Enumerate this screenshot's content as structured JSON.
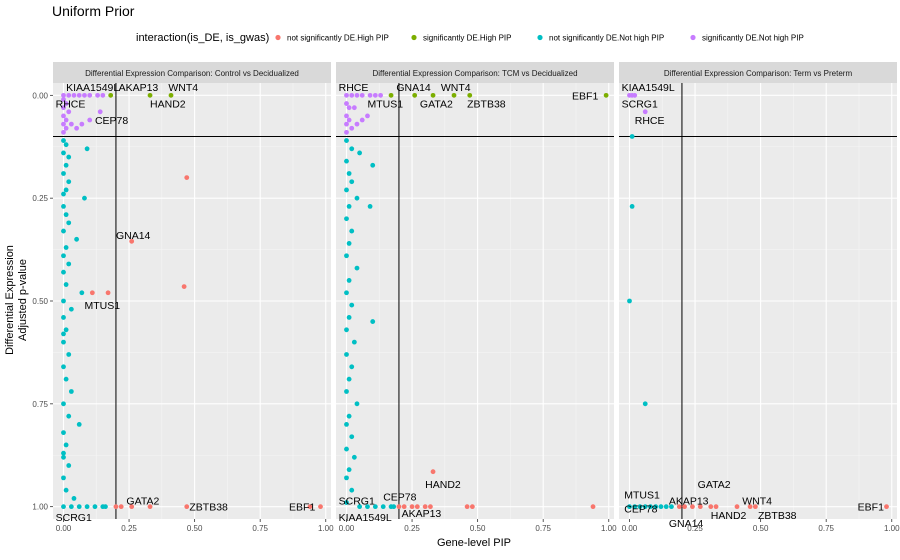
{
  "chart_data": {
    "type": "scatter",
    "title": "Uniform Prior",
    "legend": {
      "title": "interaction(is_DE, is_gwas)",
      "placement": "top",
      "entries": [
        {
          "label": "not significantly DE.High PIP",
          "color": "#F8766D"
        },
        {
          "label": "significantly DE.High PIP",
          "color": "#7CAE00"
        },
        {
          "label": "not significantly DE.Not high PIP",
          "color": "#00BFC4"
        },
        {
          "label": "significantly DE.Not high PIP",
          "color": "#C77CFF"
        }
      ]
    },
    "xlabel": "Gene-level PIP",
    "ylabel_line1": "Differential Expression",
    "ylabel_line2": "Adjusted p-value",
    "xlim": [
      -0.04,
      1.02
    ],
    "ylim_reversed": [
      -0.03,
      1.03
    ],
    "x_ticks": [
      0.0,
      0.25,
      0.5,
      0.75,
      1.0
    ],
    "x_tick_labels": [
      "0.00",
      "0.25",
      "0.50",
      "0.75",
      "1.00"
    ],
    "y_ticks": [
      0.0,
      0.25,
      0.5,
      0.75,
      1.0
    ],
    "y_tick_labels": [
      "0.00",
      "0.25",
      "0.50",
      "0.75",
      "1.00"
    ],
    "hline_y": 0.1,
    "vline_x": 0.2,
    "grid": true,
    "panels": [
      {
        "strip": "Differential Expression Comparison: Control vs Decidualized",
        "points": {
          "not significantly DE.High PIP": [
            [
              0.47,
              0.2
            ],
            [
              0.26,
              0.355
            ],
            [
              0.46,
              0.465
            ],
            [
              0.11,
              0.48
            ],
            [
              0.17,
              0.48
            ],
            [
              0.2,
              1.0
            ],
            [
              0.22,
              1.0
            ],
            [
              0.26,
              1.0
            ],
            [
              0.33,
              1.0
            ],
            [
              0.47,
              1.0
            ],
            [
              0.98,
              1.0
            ],
            [
              0.94,
              1.0
            ]
          ],
          "significantly DE.High PIP": [
            [
              0.18,
              0.0
            ],
            [
              0.33,
              0.0
            ],
            [
              0.41,
              0.0
            ]
          ],
          "not significantly DE.Not high PIP": [
            [
              0.0,
              0.11
            ],
            [
              0.01,
              0.12
            ],
            [
              0.0,
              0.14
            ],
            [
              0.02,
              0.15
            ],
            [
              0.09,
              0.13
            ],
            [
              0.01,
              0.17
            ],
            [
              0.0,
              0.19
            ],
            [
              0.02,
              0.21
            ],
            [
              0.01,
              0.23
            ],
            [
              0.08,
              0.25
            ],
            [
              0.0,
              0.27
            ],
            [
              0.01,
              0.29
            ],
            [
              0.02,
              0.31
            ],
            [
              0.0,
              0.33
            ],
            [
              0.05,
              0.35
            ],
            [
              0.01,
              0.37
            ],
            [
              0.0,
              0.39
            ],
            [
              0.02,
              0.41
            ],
            [
              0.0,
              0.43
            ],
            [
              0.01,
              0.46
            ],
            [
              0.07,
              0.48
            ],
            [
              0.0,
              0.5
            ],
            [
              0.03,
              0.52
            ],
            [
              0.0,
              0.54
            ],
            [
              0.01,
              0.57
            ],
            [
              0.0,
              0.6
            ],
            [
              0.02,
              0.63
            ],
            [
              0.0,
              0.66
            ],
            [
              0.01,
              0.69
            ],
            [
              0.03,
              0.72
            ],
            [
              0.0,
              0.75
            ],
            [
              0.02,
              0.78
            ],
            [
              0.06,
              0.8
            ],
            [
              0.0,
              0.82
            ],
            [
              0.01,
              0.85
            ],
            [
              0.0,
              0.87
            ],
            [
              0.02,
              0.9
            ],
            [
              0.0,
              0.93
            ],
            [
              0.01,
              0.96
            ],
            [
              0.04,
              0.98
            ],
            [
              0.0,
              1.0
            ],
            [
              0.03,
              1.0
            ],
            [
              0.06,
              1.0
            ],
            [
              0.09,
              1.0
            ],
            [
              0.12,
              1.0
            ],
            [
              0.15,
              1.0
            ],
            [
              0.16,
              1.0
            ],
            [
              0.0,
              0.24
            ],
            [
              0.0,
              0.58
            ],
            [
              0.0,
              0.88
            ]
          ],
          "significantly DE.Not high PIP": [
            [
              0.0,
              0.0
            ],
            [
              0.02,
              0.0
            ],
            [
              0.04,
              0.0
            ],
            [
              0.06,
              0.0
            ],
            [
              0.08,
              0.0
            ],
            [
              0.1,
              0.0
            ],
            [
              0.13,
              0.0
            ],
            [
              0.15,
              0.0
            ],
            [
              0.0,
              0.01
            ],
            [
              0.01,
              0.02
            ],
            [
              0.0,
              0.03
            ],
            [
              0.02,
              0.04
            ],
            [
              0.0,
              0.05
            ],
            [
              0.01,
              0.06
            ],
            [
              0.0,
              0.07
            ],
            [
              0.03,
              0.07
            ],
            [
              0.01,
              0.08
            ],
            [
              0.07,
              0.07
            ],
            [
              0.1,
              0.06
            ],
            [
              0.05,
              0.08
            ],
            [
              0.0,
              0.09
            ],
            [
              0.14,
              0.04
            ]
          ]
        },
        "labels": [
          {
            "text": "KIAA1549L",
            "x": 0.01,
            "y": -0.02,
            "anchor": "start"
          },
          {
            "text": "AKAP13",
            "x": 0.21,
            "y": -0.02,
            "anchor": "start"
          },
          {
            "text": "WNT4",
            "x": 0.4,
            "y": -0.02,
            "anchor": "start"
          },
          {
            "text": "RHCE",
            "x": -0.03,
            "y": 0.02,
            "anchor": "start"
          },
          {
            "text": "HAND2",
            "x": 0.33,
            "y": 0.02,
            "anchor": "start"
          },
          {
            "text": "CEP78",
            "x": 0.12,
            "y": 0.06,
            "anchor": "start"
          },
          {
            "text": "GNA14",
            "x": 0.2,
            "y": 0.34,
            "anchor": "start"
          },
          {
            "text": "MTUS1",
            "x": 0.08,
            "y": 0.51,
            "anchor": "start"
          },
          {
            "text": "GATA2",
            "x": 0.24,
            "y": 0.985,
            "anchor": "start"
          },
          {
            "text": "ZBTB38",
            "x": 0.48,
            "y": 1.0,
            "anchor": "start"
          },
          {
            "text": "EBF1",
            "x": 0.86,
            "y": 1.0,
            "anchor": "start"
          },
          {
            "text": "SCRG1",
            "x": -0.03,
            "y": 1.025,
            "anchor": "start"
          }
        ]
      },
      {
        "strip": "Differential Expression Comparison: TCM vs Decidualized",
        "points": {
          "not significantly DE.High PIP": [
            [
              0.33,
              0.915
            ],
            [
              0.22,
              1.0
            ],
            [
              0.25,
              1.0
            ],
            [
              0.27,
              1.0
            ],
            [
              0.3,
              1.0
            ],
            [
              0.32,
              1.0
            ],
            [
              0.46,
              1.0
            ],
            [
              0.48,
              1.0
            ],
            [
              0.94,
              1.0
            ],
            [
              0.2,
              1.0
            ]
          ],
          "significantly DE.High PIP": [
            [
              0.17,
              0.0
            ],
            [
              0.26,
              0.0
            ],
            [
              0.33,
              0.0
            ],
            [
              0.41,
              0.0
            ],
            [
              0.47,
              0.0
            ],
            [
              0.99,
              0.0
            ]
          ],
          "not significantly DE.Not high PIP": [
            [
              0.0,
              0.11
            ],
            [
              0.02,
              0.13
            ],
            [
              0.05,
              0.14
            ],
            [
              0.0,
              0.16
            ],
            [
              0.1,
              0.17
            ],
            [
              0.01,
              0.19
            ],
            [
              0.02,
              0.21
            ],
            [
              0.0,
              0.23
            ],
            [
              0.04,
              0.25
            ],
            [
              0.01,
              0.27
            ],
            [
              0.09,
              0.27
            ],
            [
              0.0,
              0.3
            ],
            [
              0.02,
              0.33
            ],
            [
              0.01,
              0.36
            ],
            [
              0.0,
              0.39
            ],
            [
              0.04,
              0.42
            ],
            [
              0.01,
              0.45
            ],
            [
              0.0,
              0.48
            ],
            [
              0.02,
              0.51
            ],
            [
              0.1,
              0.55
            ],
            [
              0.01,
              0.54
            ],
            [
              0.0,
              0.57
            ],
            [
              0.03,
              0.6
            ],
            [
              0.0,
              0.63
            ],
            [
              0.02,
              0.66
            ],
            [
              0.01,
              0.69
            ],
            [
              0.0,
              0.72
            ],
            [
              0.04,
              0.75
            ],
            [
              0.01,
              0.78
            ],
            [
              0.0,
              0.8
            ],
            [
              0.02,
              0.83
            ],
            [
              0.0,
              0.86
            ],
            [
              0.03,
              0.88
            ],
            [
              0.01,
              0.91
            ],
            [
              0.0,
              0.93
            ],
            [
              0.02,
              0.96
            ],
            [
              0.0,
              0.99
            ],
            [
              0.05,
              1.0
            ],
            [
              0.08,
              1.0
            ],
            [
              0.11,
              1.0
            ],
            [
              0.14,
              1.0
            ],
            [
              0.17,
              1.0
            ],
            [
              0.18,
              1.0
            ]
          ],
          "significantly DE.Not high PIP": [
            [
              0.0,
              0.0
            ],
            [
              0.02,
              0.0
            ],
            [
              0.04,
              0.0
            ],
            [
              0.06,
              0.0
            ],
            [
              0.09,
              0.0
            ],
            [
              0.11,
              0.0
            ],
            [
              0.13,
              0.0
            ],
            [
              0.0,
              0.02
            ],
            [
              0.01,
              0.03
            ],
            [
              0.03,
              0.03
            ],
            [
              0.0,
              0.05
            ],
            [
              0.01,
              0.06
            ],
            [
              0.0,
              0.07
            ],
            [
              0.02,
              0.08
            ],
            [
              0.0,
              0.09
            ],
            [
              0.04,
              0.07
            ],
            [
              0.06,
              0.06
            ],
            [
              0.08,
              0.05
            ]
          ]
        },
        "labels": [
          {
            "text": "RHCE",
            "x": -0.03,
            "y": -0.02,
            "anchor": "start"
          },
          {
            "text": "GNA14",
            "x": 0.19,
            "y": -0.02,
            "anchor": "start"
          },
          {
            "text": "WNT4",
            "x": 0.36,
            "y": -0.02,
            "anchor": "start"
          },
          {
            "text": "EBF1",
            "x": 0.86,
            "y": 0.0,
            "anchor": "start"
          },
          {
            "text": "MTUS1",
            "x": 0.08,
            "y": 0.02,
            "anchor": "start"
          },
          {
            "text": "GATA2",
            "x": 0.28,
            "y": 0.02,
            "anchor": "start"
          },
          {
            "text": "ZBTB38",
            "x": 0.46,
            "y": 0.02,
            "anchor": "start"
          },
          {
            "text": "HAND2",
            "x": 0.3,
            "y": 0.945,
            "anchor": "start"
          },
          {
            "text": "CEP78",
            "x": 0.14,
            "y": 0.975,
            "anchor": "start"
          },
          {
            "text": "SCRG1",
            "x": -0.03,
            "y": 0.985,
            "anchor": "start"
          },
          {
            "text": "AKAP13",
            "x": 0.21,
            "y": 1.015,
            "anchor": "start"
          },
          {
            "text": "KIAA1549L",
            "x": -0.03,
            "y": 1.025,
            "anchor": "start"
          }
        ]
      },
      {
        "strip": "Differential Expression Comparison: Term vs Preterm",
        "points": {
          "not significantly DE.High PIP": [
            [
              0.21,
              1.0
            ],
            [
              0.24,
              1.0
            ],
            [
              0.27,
              1.0
            ],
            [
              0.31,
              1.0
            ],
            [
              0.33,
              1.0
            ],
            [
              0.41,
              1.0
            ],
            [
              0.46,
              1.0
            ],
            [
              0.48,
              1.0
            ],
            [
              0.98,
              1.0
            ],
            [
              0.19,
              1.0
            ]
          ],
          "significantly DE.High PIP": [],
          "not significantly DE.Not high PIP": [
            [
              0.01,
              0.1
            ],
            [
              0.01,
              0.27
            ],
            [
              0.0,
              0.5
            ],
            [
              0.06,
              0.75
            ],
            [
              0.0,
              1.0
            ],
            [
              0.02,
              1.0
            ],
            [
              0.04,
              1.0
            ],
            [
              0.06,
              1.0
            ],
            [
              0.08,
              1.0
            ],
            [
              0.1,
              1.0
            ],
            [
              0.12,
              1.0
            ],
            [
              0.14,
              1.0
            ],
            [
              0.16,
              1.0
            ]
          ],
          "significantly DE.Not high PIP": [
            [
              0.0,
              0.0
            ],
            [
              0.01,
              0.0
            ],
            [
              0.02,
              0.0
            ],
            [
              0.06,
              0.04
            ]
          ]
        },
        "labels": [
          {
            "text": "KIAA1549L",
            "x": -0.03,
            "y": -0.02,
            "anchor": "start"
          },
          {
            "text": "SCRG1",
            "x": -0.03,
            "y": 0.02,
            "anchor": "start"
          },
          {
            "text": "RHCE",
            "x": 0.02,
            "y": 0.06,
            "anchor": "start"
          },
          {
            "text": "GATA2",
            "x": 0.26,
            "y": 0.945,
            "anchor": "start"
          },
          {
            "text": "MTUS1",
            "x": -0.02,
            "y": 0.97,
            "anchor": "start"
          },
          {
            "text": "AKAP13",
            "x": 0.15,
            "y": 0.985,
            "anchor": "start"
          },
          {
            "text": "WNT4",
            "x": 0.43,
            "y": 0.985,
            "anchor": "start"
          },
          {
            "text": "CEP78",
            "x": -0.02,
            "y": 1.005,
            "anchor": "start"
          },
          {
            "text": "EBF1",
            "x": 0.87,
            "y": 1.0,
            "anchor": "start"
          },
          {
            "text": "HAND2",
            "x": 0.31,
            "y": 1.02,
            "anchor": "start"
          },
          {
            "text": "ZBTB38",
            "x": 0.49,
            "y": 1.02,
            "anchor": "start"
          },
          {
            "text": "GNA14",
            "x": 0.15,
            "y": 1.04,
            "anchor": "start"
          }
        ]
      }
    ]
  }
}
